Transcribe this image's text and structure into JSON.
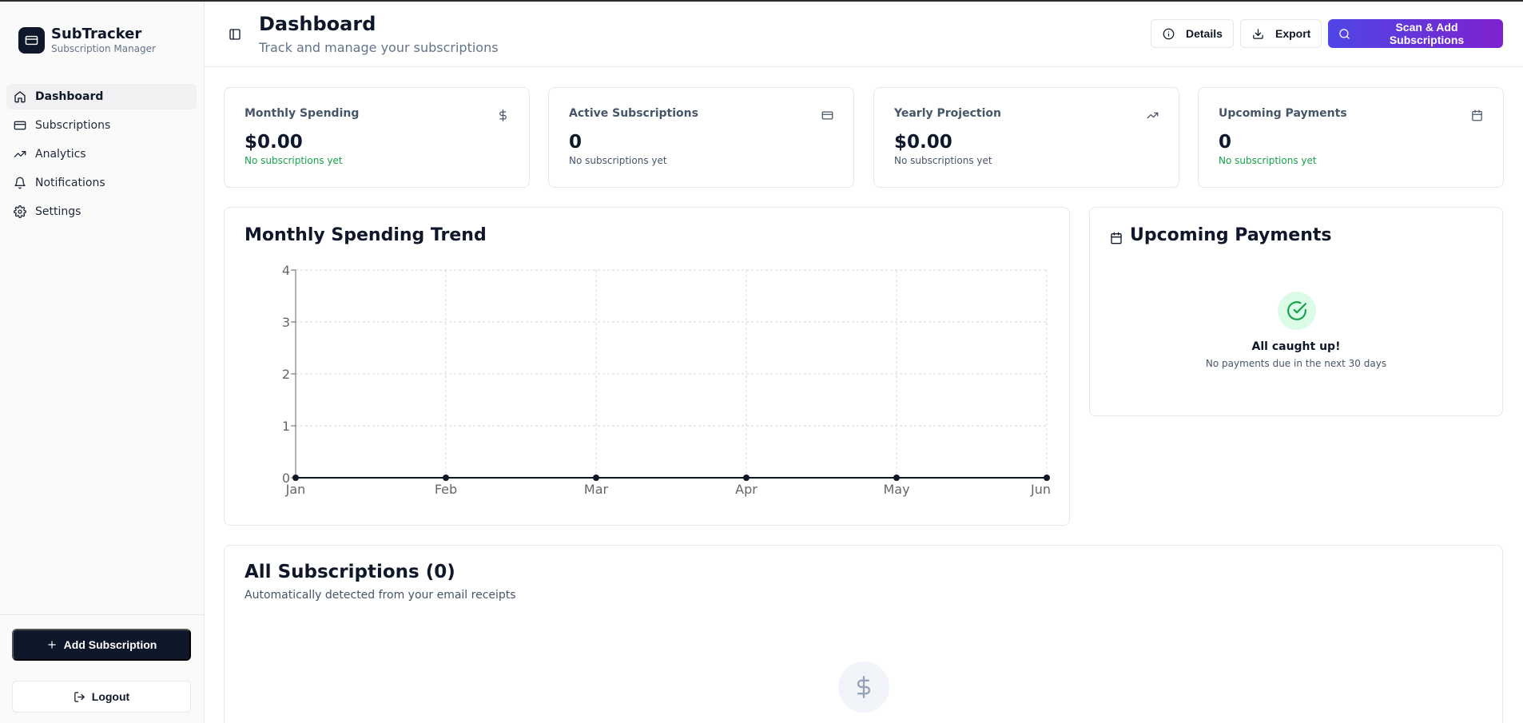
{
  "brand": {
    "name": "SubTracker",
    "subtitle": "Subscription Manager"
  },
  "sidebar": {
    "items": [
      {
        "label": "Dashboard",
        "icon": "home-icon",
        "active": true
      },
      {
        "label": "Subscriptions",
        "icon": "credit-card-icon"
      },
      {
        "label": "Analytics",
        "icon": "trending-up-icon"
      },
      {
        "label": "Notifications",
        "icon": "bell-icon"
      },
      {
        "label": "Settings",
        "icon": "gear-icon"
      }
    ],
    "add_label": "Add Subscription",
    "logout_label": "Logout"
  },
  "header": {
    "title": "Dashboard",
    "subtitle": "Track and manage your subscriptions",
    "details_label": "Details",
    "export_label": "Export",
    "scan_label": "Scan & Add Subscriptions"
  },
  "stats": [
    {
      "label": "Monthly Spending",
      "value": "$0.00",
      "note": "No subscriptions yet",
      "icon": "dollar-icon",
      "note_color": "#16a34a"
    },
    {
      "label": "Active Subscriptions",
      "value": "0",
      "note": "No subscriptions yet",
      "icon": "credit-card-icon",
      "note_color": "#475569"
    },
    {
      "label": "Yearly Projection",
      "value": "$0.00",
      "note": "No subscriptions yet",
      "icon": "trending-up-icon",
      "note_color": "#475569"
    },
    {
      "label": "Upcoming Payments",
      "value": "0",
      "note": "No subscriptions yet",
      "icon": "calendar-icon",
      "note_color": "#16a34a"
    }
  ],
  "chart_card": {
    "title": "Monthly Spending Trend"
  },
  "chart_data": {
    "type": "line",
    "x": [
      "Jan",
      "Feb",
      "Mar",
      "Apr",
      "May",
      "Jun"
    ],
    "series": [
      {
        "values": [
          0,
          0,
          0,
          0,
          0,
          0
        ]
      }
    ],
    "ylim": [
      0,
      4
    ],
    "yticks": [
      "0",
      "1",
      "2",
      "3",
      "4"
    ],
    "grid": true,
    "line_color": "#0f172a"
  },
  "upcoming": {
    "title": "Upcoming Payments",
    "empty_title": "All caught up!",
    "empty_subtitle": "No payments due in the next 30 days"
  },
  "all_subs": {
    "title": "All Subscriptions (0)",
    "subtitle": "Automatically detected from your email receipts"
  },
  "colors": {
    "primary": "#0f172a",
    "accent_start": "#4f46e5",
    "accent_end": "#7e22ce",
    "success": "#16a34a"
  }
}
